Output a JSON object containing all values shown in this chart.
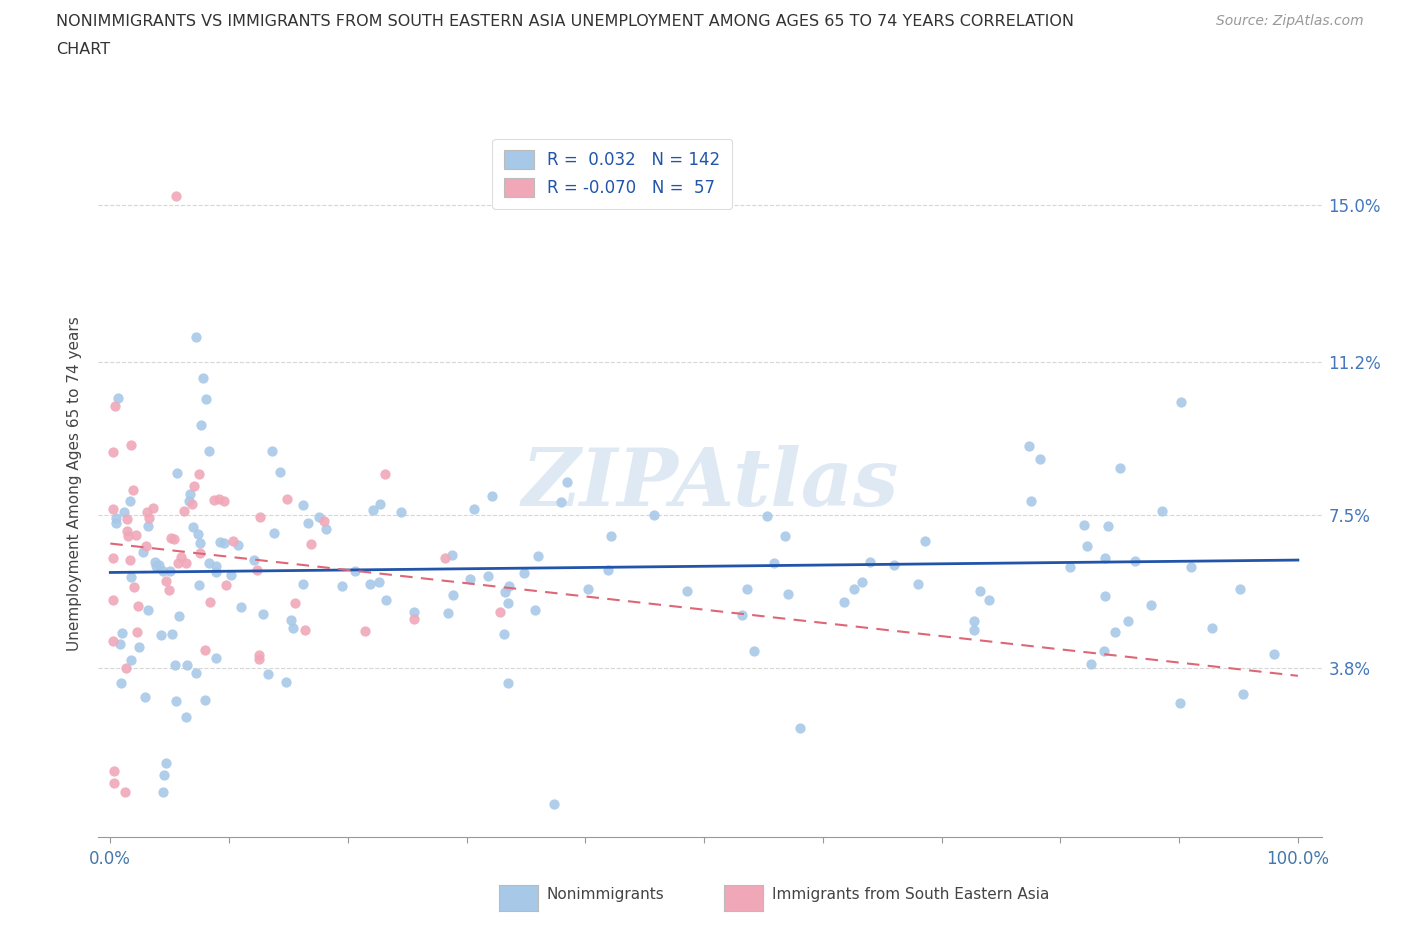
{
  "title_line1": "NONIMMIGRANTS VS IMMIGRANTS FROM SOUTH EASTERN ASIA UNEMPLOYMENT AMONG AGES 65 TO 74 YEARS CORRELATION",
  "title_line2": "CHART",
  "source_text": "Source: ZipAtlas.com",
  "ylabel": "Unemployment Among Ages 65 to 74 years",
  "legend_labels": [
    "Nonimmigrants",
    "Immigrants from South Eastern Asia"
  ],
  "legend_r_blue": "R =  0.032",
  "legend_n_blue": "N = 142",
  "legend_r_pink": "R = -0.070",
  "legend_n_pink": "N =  57",
  "blue_color": "#A8C8E8",
  "pink_color": "#F0A8B8",
  "blue_line_color": "#2255AA",
  "pink_line_color": "#DD6677",
  "yticks": [
    3.8,
    7.5,
    11.2,
    15.0
  ],
  "ytick_labels": [
    "3.8%",
    "7.5%",
    "11.2%",
    "15.0%"
  ],
  "background_color": "#FFFFFF",
  "grid_color": "#CCCCCC",
  "watermark": "ZIPAtlas"
}
